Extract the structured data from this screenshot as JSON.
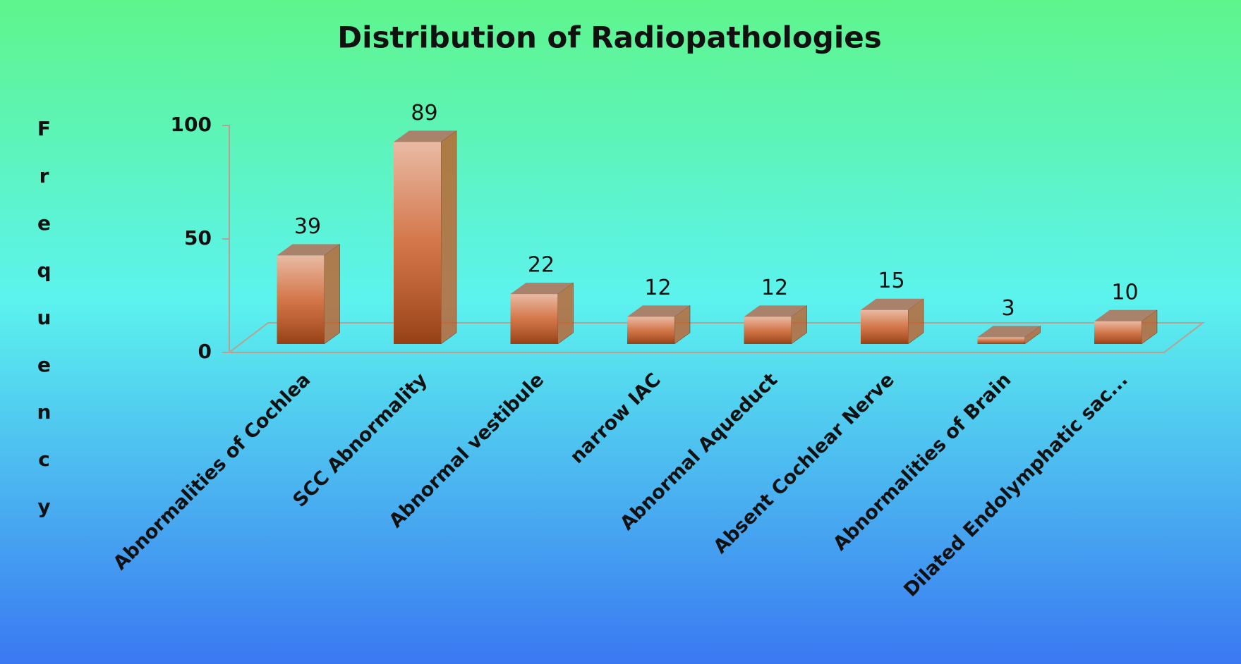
{
  "chart_data": {
    "type": "bar",
    "title": "Distribution of Radiopathologies",
    "y_label": "Frequency",
    "categories": [
      "Abnormalities of Cochlea",
      "SCC Abnormality",
      "Abnormal vestibule",
      "narrow IAC",
      "Abnormal Aqueduct",
      "Absent Cochlear Nerve",
      "Abnormalities of Brain",
      "Dilated Endolymphatic sac..."
    ],
    "values": [
      39,
      89,
      22,
      12,
      12,
      15,
      3,
      10
    ],
    "color": "#c8541c",
    "ylim": [
      0,
      100
    ],
    "yticks": [
      0,
      50,
      100
    ]
  }
}
